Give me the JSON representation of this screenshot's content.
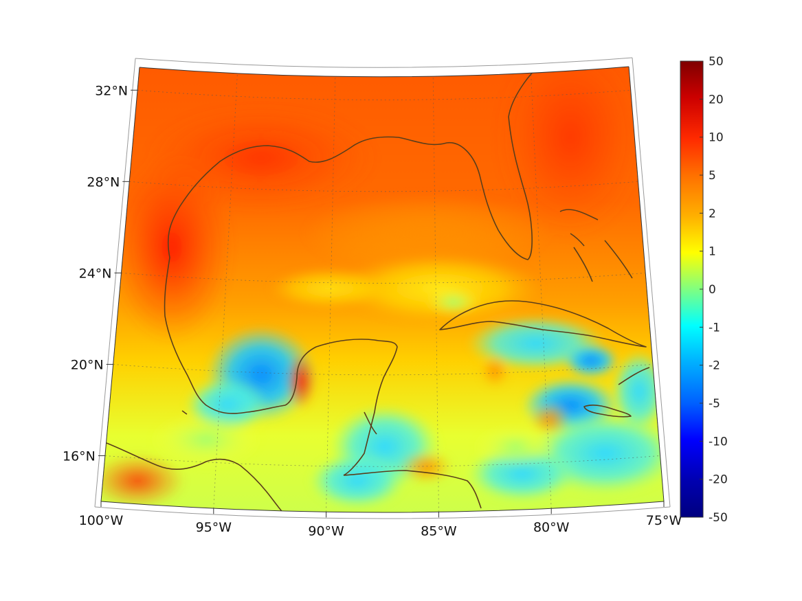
{
  "map": {
    "projection": "lambert-conformal",
    "lon_range": [
      -100,
      -75
    ],
    "lat_range": [
      14,
      33
    ],
    "lon_ticks": [
      {
        "value": -100,
        "label": "100°W"
      },
      {
        "value": -95,
        "label": "95°W"
      },
      {
        "value": -90,
        "label": "90°W"
      },
      {
        "value": -85,
        "label": "85°W"
      },
      {
        "value": -80,
        "label": "80°W"
      },
      {
        "value": -75,
        "label": "75°W"
      }
    ],
    "lat_ticks": [
      {
        "value": 16,
        "label": "16°N"
      },
      {
        "value": 20,
        "label": "20°N"
      },
      {
        "value": 24,
        "label": "24°N"
      },
      {
        "value": 28,
        "label": "28°N"
      },
      {
        "value": 32,
        "label": "32°N"
      }
    ],
    "grid": true,
    "coastline_color": "#5a3e1b"
  },
  "colorbar": {
    "orientation": "vertical",
    "placement": "right",
    "ticks": [
      "50",
      "20",
      "10",
      "5",
      "2",
      "1",
      "0",
      "-1",
      "-2",
      "-5",
      "-10",
      "-20",
      "-50"
    ],
    "colors": [
      "#800000",
      "#ff0000",
      "#ff8000",
      "#ffff00",
      "#80ff80",
      "#00ffff",
      "#0080ff",
      "#0000ff",
      "#000080"
    ]
  }
}
